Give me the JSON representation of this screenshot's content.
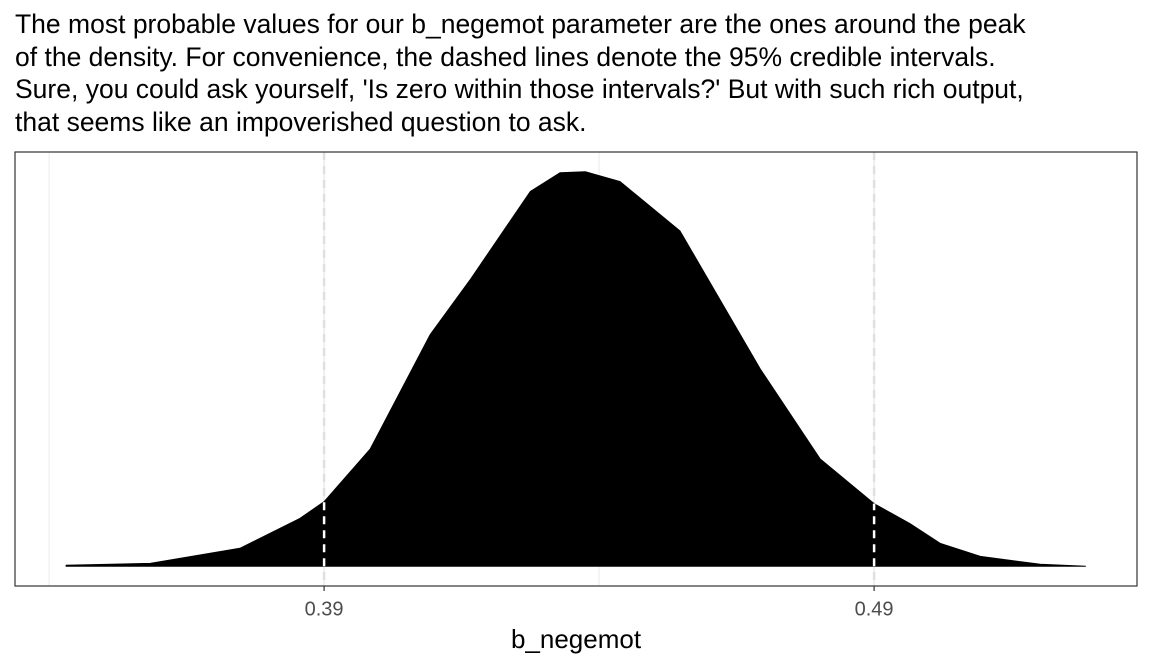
{
  "paragraph": [
    "The most probable values for our b_negemot parameter are the ones around the peak",
    "of the density. For convenience, the dashed lines denote the 95% credible intervals.",
    "Sure, you could ask yourself, 'Is zero within those intervals?' But with such rich output,",
    "that seems like an impoverished question to ask."
  ],
  "chart_data": {
    "type": "area",
    "xlabel": "b_negemot",
    "color": "#000000",
    "x": [
      0.3431,
      0.3584,
      0.3747,
      0.3856,
      0.39,
      0.3984,
      0.4093,
      0.4165,
      0.4275,
      0.4329,
      0.4375,
      0.4438,
      0.4547,
      0.4693,
      0.4802,
      0.49,
      0.4965,
      0.502,
      0.5093,
      0.5202,
      0.5285
    ],
    "values": [
      0.04,
      0.12,
      0.73,
      1.94,
      2.62,
      4.76,
      9.4,
      11.6,
      15.2,
      15.96,
      16.0,
      15.6,
      13.6,
      8.0,
      4.35,
      2.54,
      1.73,
      0.93,
      0.4,
      0.08,
      0.0
    ],
    "intervals": [
      0.39,
      0.49
    ],
    "xlim": [
      0.3338,
      0.5378
    ],
    "xticks": [
      0.39,
      0.49
    ],
    "minor_xticks": [
      0.34,
      0.44
    ],
    "ylim": [
      -0.8,
      16.8
    ],
    "grid": true
  }
}
